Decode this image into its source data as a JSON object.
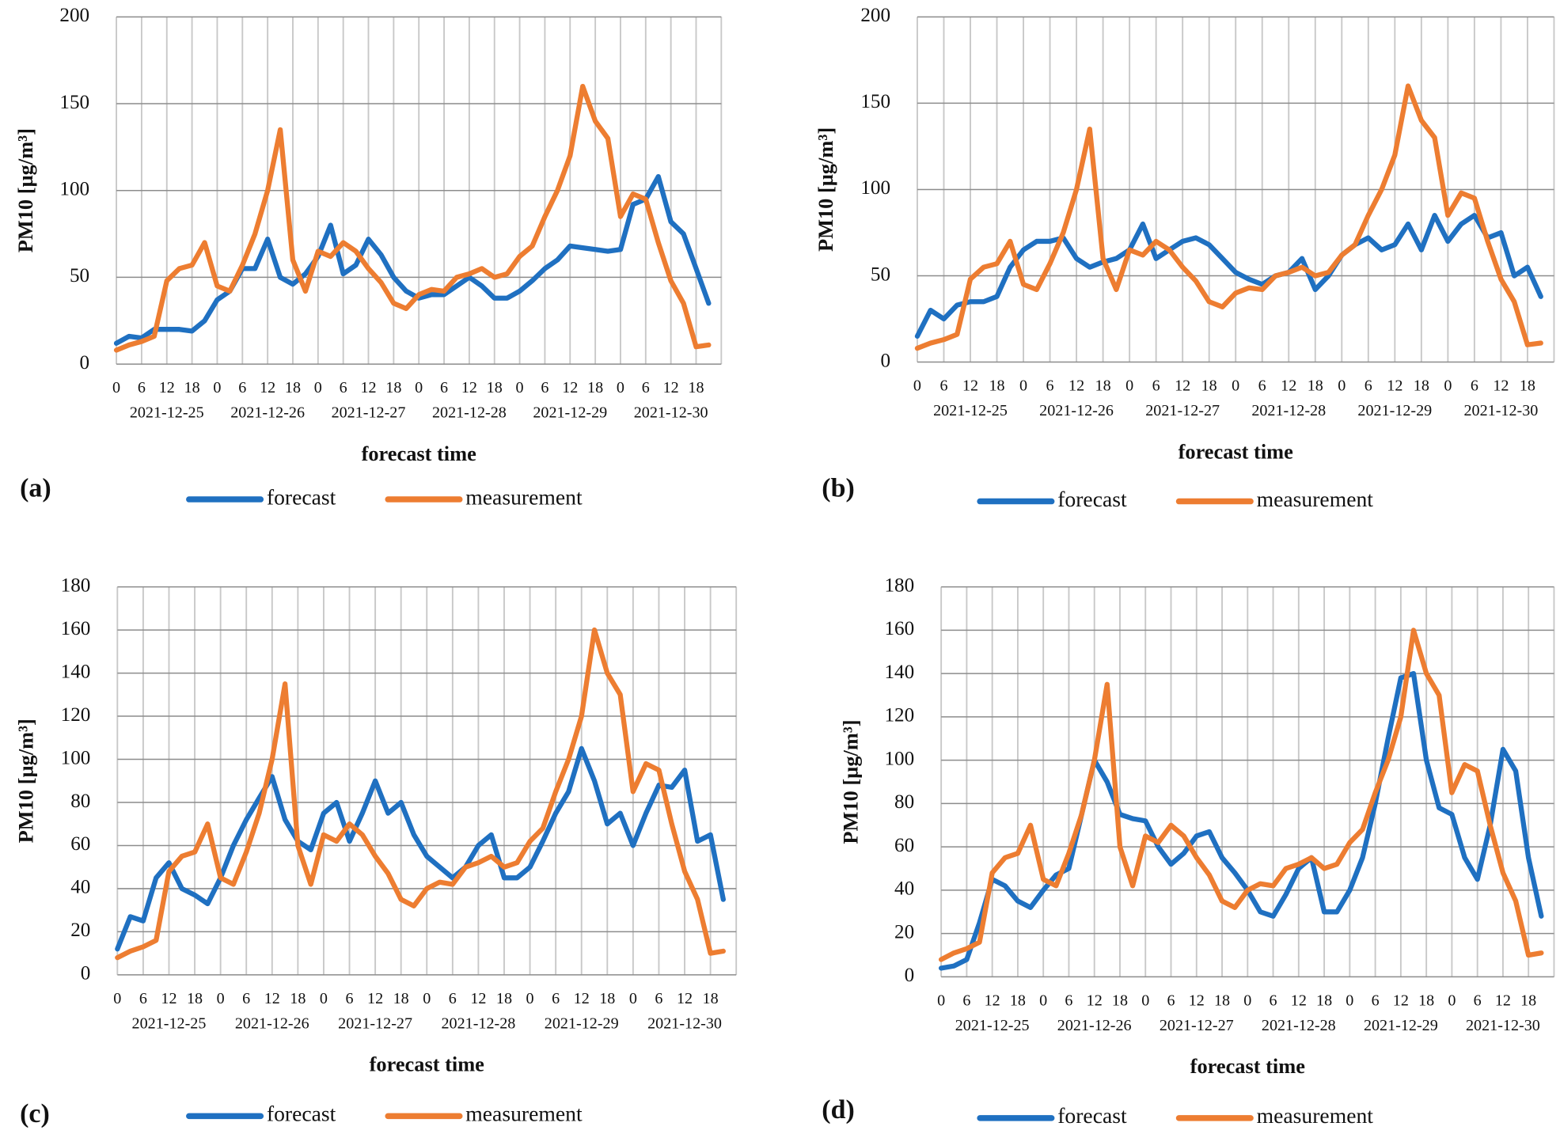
{
  "chart_data": [
    {
      "type": "line",
      "label": "(a)",
      "y_label": "PM10 [µg/m³]",
      "x_label": "forecast time",
      "categories": [
        "0",
        null,
        "6",
        null,
        "12",
        null,
        "18",
        null,
        "0",
        null,
        "6",
        null,
        "12",
        null,
        "18",
        null,
        "0",
        null,
        "6",
        null,
        "12",
        null,
        "18",
        null,
        "0",
        null,
        "6",
        null,
        "12",
        null,
        "18",
        null,
        "0",
        null,
        "6",
        null,
        "12",
        null,
        "18",
        null,
        "0",
        null,
        "6",
        null,
        "12",
        null,
        "18",
        null
      ],
      "dates": [
        "2021-12-25",
        "2021-12-26",
        "2021-12-27",
        "2021-12-28",
        "2021-12-29",
        "2021-12-30"
      ],
      "ylim": [
        0,
        200
      ],
      "yticks": [
        0,
        50,
        100,
        150,
        200
      ],
      "grid": true,
      "series": [
        {
          "name": "forecast",
          "color": "#1f70c1",
          "values": [
            12,
            16,
            15,
            20,
            20,
            20,
            19,
            25,
            37,
            42,
            55,
            55,
            72,
            50,
            46,
            52,
            62,
            80,
            52,
            57,
            72,
            63,
            50,
            42,
            38,
            40,
            40,
            45,
            50,
            45,
            38,
            38,
            42,
            48,
            55,
            60,
            68,
            67,
            66,
            65,
            66,
            92,
            95,
            108,
            82,
            75,
            55,
            35
          ]
        },
        {
          "name": "measurement",
          "color": "#ed7d31",
          "values": [
            8,
            11,
            13,
            16,
            48,
            55,
            57,
            70,
            45,
            42,
            57,
            75,
            100,
            135,
            60,
            42,
            65,
            62,
            70,
            65,
            55,
            47,
            35,
            32,
            40,
            43,
            42,
            50,
            52,
            55,
            50,
            52,
            62,
            68,
            85,
            100,
            120,
            160,
            140,
            130,
            85,
            98,
            95,
            70,
            48,
            35,
            10,
            11
          ]
        }
      ]
    },
    {
      "type": "line",
      "label": "(b)",
      "y_label": "PM10 [µg/m³]",
      "x_label": "forecast time",
      "categories": [
        "0",
        null,
        "6",
        null,
        "12",
        null,
        "18",
        null,
        "0",
        null,
        "6",
        null,
        "12",
        null,
        "18",
        null,
        "0",
        null,
        "6",
        null,
        "12",
        null,
        "18",
        null,
        "0",
        null,
        "6",
        null,
        "12",
        null,
        "18",
        null,
        "0",
        null,
        "6",
        null,
        "12",
        null,
        "18",
        null,
        "0",
        null,
        "6",
        null,
        "12",
        null,
        "18",
        null
      ],
      "dates": [
        "2021-12-25",
        "2021-12-26",
        "2021-12-27",
        "2021-12-28",
        "2021-12-29",
        "2021-12-30"
      ],
      "ylim": [
        0,
        200
      ],
      "yticks": [
        0,
        50,
        100,
        150,
        200
      ],
      "grid": true,
      "series": [
        {
          "name": "forecast",
          "color": "#1f70c1",
          "values": [
            15,
            30,
            25,
            33,
            35,
            35,
            38,
            55,
            65,
            70,
            70,
            72,
            60,
            55,
            58,
            60,
            65,
            80,
            60,
            65,
            70,
            72,
            68,
            60,
            52,
            48,
            45,
            50,
            52,
            60,
            42,
            50,
            62,
            68,
            72,
            65,
            68,
            80,
            65,
            85,
            70,
            80,
            85,
            72,
            75,
            50,
            55,
            38
          ]
        },
        {
          "name": "measurement",
          "color": "#ed7d31",
          "values": [
            8,
            11,
            13,
            16,
            48,
            55,
            57,
            70,
            45,
            42,
            57,
            75,
            100,
            135,
            60,
            42,
            65,
            62,
            70,
            65,
            55,
            47,
            35,
            32,
            40,
            43,
            42,
            50,
            52,
            55,
            50,
            52,
            62,
            68,
            85,
            100,
            120,
            160,
            140,
            130,
            85,
            98,
            95,
            70,
            48,
            35,
            10,
            11
          ]
        }
      ]
    },
    {
      "type": "line",
      "label": "(c)",
      "y_label": "PM10 [µg/m³]",
      "x_label": "forecast time",
      "categories": [
        "0",
        null,
        "6",
        null,
        "12",
        null,
        "18",
        null,
        "0",
        null,
        "6",
        null,
        "12",
        null,
        "18",
        null,
        "0",
        null,
        "6",
        null,
        "12",
        null,
        "18",
        null,
        "0",
        null,
        "6",
        null,
        "12",
        null,
        "18",
        null,
        "0",
        null,
        "6",
        null,
        "12",
        null,
        "18",
        null,
        "0",
        null,
        "6",
        null,
        "12",
        null,
        "18",
        null
      ],
      "dates": [
        "2021-12-25",
        "2021-12-26",
        "2021-12-27",
        "2021-12-28",
        "2021-12-29",
        "2021-12-30"
      ],
      "ylim": [
        0,
        180
      ],
      "yticks": [
        0,
        20,
        40,
        60,
        80,
        100,
        120,
        140,
        160,
        180
      ],
      "grid": true,
      "series": [
        {
          "name": "forecast",
          "color": "#1f70c1",
          "values": [
            12,
            27,
            25,
            45,
            52,
            40,
            37,
            33,
            45,
            60,
            72,
            82,
            92,
            72,
            62,
            58,
            75,
            80,
            62,
            75,
            90,
            75,
            80,
            65,
            55,
            50,
            45,
            50,
            60,
            65,
            45,
            45,
            50,
            62,
            75,
            85,
            105,
            90,
            70,
            75,
            60,
            75,
            88,
            87,
            95,
            62,
            65,
            35
          ]
        },
        {
          "name": "measurement",
          "color": "#ed7d31",
          "values": [
            8,
            11,
            13,
            16,
            48,
            55,
            57,
            70,
            45,
            42,
            57,
            75,
            100,
            135,
            60,
            42,
            65,
            62,
            70,
            65,
            55,
            47,
            35,
            32,
            40,
            43,
            42,
            50,
            52,
            55,
            50,
            52,
            62,
            68,
            85,
            100,
            120,
            160,
            140,
            130,
            85,
            98,
            95,
            70,
            48,
            35,
            10,
            11
          ]
        }
      ]
    },
    {
      "type": "line",
      "label": "(d)",
      "y_label": "PM10 [µg/m³]",
      "x_label": "forecast time",
      "categories": [
        "0",
        null,
        "6",
        null,
        "12",
        null,
        "18",
        null,
        "0",
        null,
        "6",
        null,
        "12",
        null,
        "18",
        null,
        "0",
        null,
        "6",
        null,
        "12",
        null,
        "18",
        null,
        "0",
        null,
        "6",
        null,
        "12",
        null,
        "18",
        null,
        "0",
        null,
        "6",
        null,
        "12",
        null,
        "18",
        null,
        "0",
        null,
        "6",
        null,
        "12",
        null,
        "18",
        null
      ],
      "dates": [
        "2021-12-25",
        "2021-12-26",
        "2021-12-27",
        "2021-12-28",
        "2021-12-29",
        "2021-12-30"
      ],
      "ylim": [
        0,
        180
      ],
      "yticks": [
        0,
        20,
        40,
        60,
        80,
        100,
        120,
        140,
        160,
        180
      ],
      "grid": true,
      "series": [
        {
          "name": "forecast",
          "color": "#1f70c1",
          "values": [
            4,
            5,
            8,
            25,
            45,
            42,
            35,
            32,
            40,
            47,
            50,
            75,
            100,
            90,
            75,
            73,
            72,
            60,
            52,
            57,
            65,
            67,
            55,
            48,
            40,
            30,
            28,
            38,
            50,
            55,
            30,
            30,
            40,
            55,
            80,
            110,
            138,
            140,
            100,
            78,
            75,
            55,
            45,
            70,
            105,
            95,
            55,
            28
          ]
        },
        {
          "name": "measurement",
          "color": "#ed7d31",
          "values": [
            8,
            11,
            13,
            16,
            48,
            55,
            57,
            70,
            45,
            42,
            57,
            75,
            100,
            135,
            60,
            42,
            65,
            62,
            70,
            65,
            55,
            47,
            35,
            32,
            40,
            43,
            42,
            50,
            52,
            55,
            50,
            52,
            62,
            68,
            85,
            100,
            120,
            160,
            140,
            130,
            85,
            98,
            95,
            70,
            48,
            35,
            10,
            11
          ]
        }
      ]
    }
  ]
}
